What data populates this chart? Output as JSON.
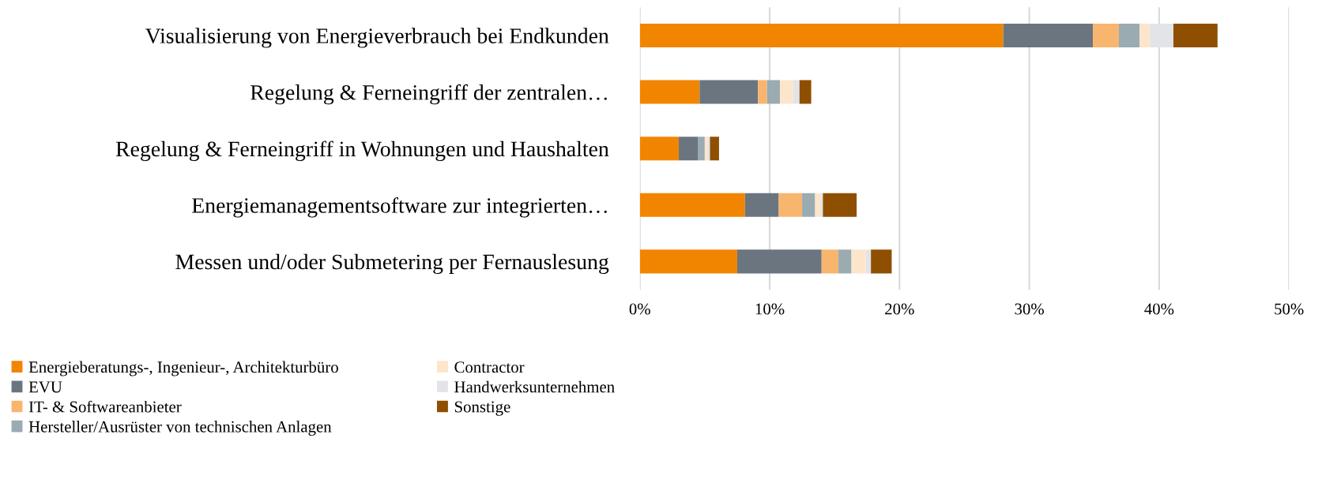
{
  "chart_data": {
    "type": "bar",
    "orientation": "horizontal",
    "stacked": true,
    "categories": [
      "Visualisierung von Energieverbrauch bei Endkunden",
      "Regelung & Ferneingriff der zentralen…",
      "Regelung & Ferneingriff in Wohnungen und Haushalten",
      "Energiemanagementsoftware zur integrierten…",
      "Messen und/oder Submetering per Fernauslesung"
    ],
    "series": [
      {
        "name": "Energieberatungs-, Ingenieur-, Architekturbüro",
        "color": "#f28500",
        "values": [
          28.0,
          4.6,
          3.0,
          8.1,
          7.5
        ]
      },
      {
        "name": "EVU",
        "color": "#6b7580",
        "values": [
          6.9,
          4.5,
          1.5,
          2.6,
          6.5
        ]
      },
      {
        "name": "IT- & Softwareanbieter",
        "color": "#f8b56e",
        "values": [
          2.0,
          0.7,
          0,
          1.8,
          1.3
        ]
      },
      {
        "name": "Hersteller/Ausrüster von technischen Anlagen",
        "color": "#9aabb2",
        "values": [
          1.6,
          1.0,
          0.5,
          1.0,
          1.0
        ]
      },
      {
        "name": "Contractor",
        "color": "#fde5cc",
        "values": [
          0.8,
          1.0,
          0.2,
          0.4,
          1.1
        ]
      },
      {
        "name": "Handwerksunternehmen",
        "color": "#e2e4e7",
        "values": [
          1.8,
          0.5,
          0.2,
          0.2,
          0.4
        ]
      },
      {
        "name": "Sonstige",
        "color": "#8f4f00",
        "values": [
          3.4,
          0.9,
          0.7,
          2.6,
          1.6
        ]
      }
    ],
    "xlim": [
      0,
      50
    ],
    "xticks": [
      {
        "value": 0,
        "label": "0%"
      },
      {
        "value": 10,
        "label": "10%"
      },
      {
        "value": 20,
        "label": "20%"
      },
      {
        "value": 30,
        "label": "30%"
      },
      {
        "value": 40,
        "label": "40%"
      },
      {
        "value": 50,
        "label": "50%"
      }
    ],
    "grid": "x",
    "legend": "bottom"
  }
}
